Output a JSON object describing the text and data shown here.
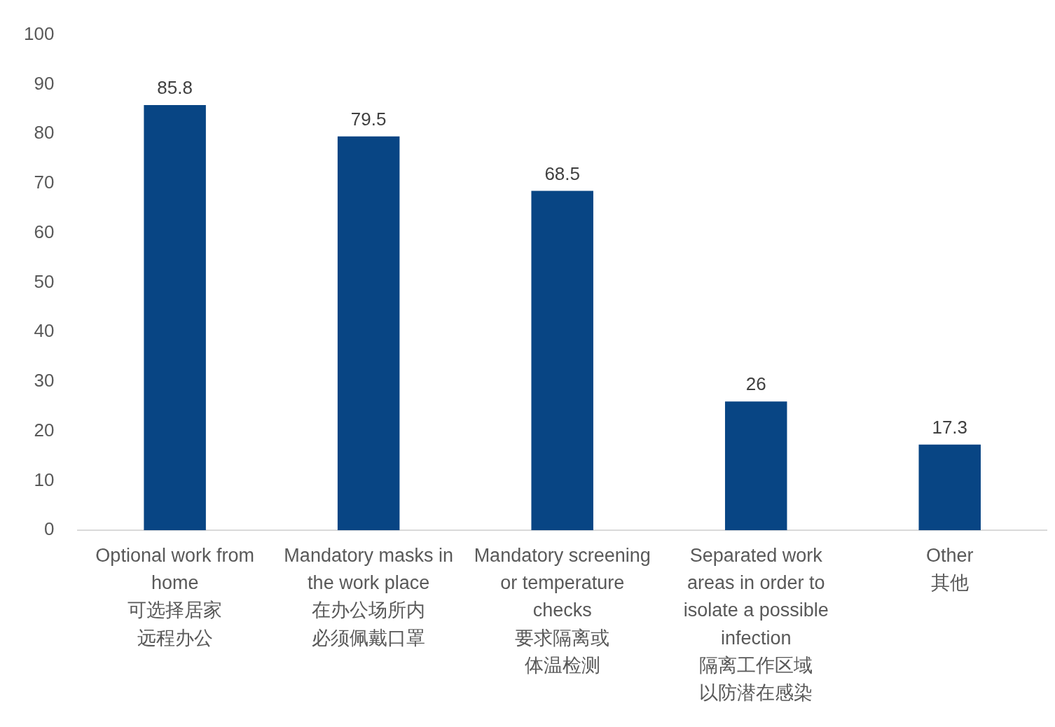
{
  "chart_data": {
    "type": "bar",
    "categories": [
      "Optional work from\nhome\n可选择居家远程办公",
      "Mandatory masks in\nthe work place\n在办公场所内必须佩戴口罩",
      "Mandatory screening\nor temperature\nchecks\n要求隔离或体温检测",
      "Separated work\nareas in order to\nisolate a possible\ninfection\n隔离工作区域以防潜在感染",
      "Other\n其他"
    ],
    "values": [
      85.8,
      79.5,
      68.5,
      26,
      17.3
    ],
    "color": "#084584",
    "ylim": [
      0,
      100
    ],
    "yticks": [
      0,
      10,
      20,
      30,
      40,
      50,
      60,
      70,
      80,
      90,
      100
    ],
    "grid": false,
    "legend": false,
    "data_labels": true
  }
}
